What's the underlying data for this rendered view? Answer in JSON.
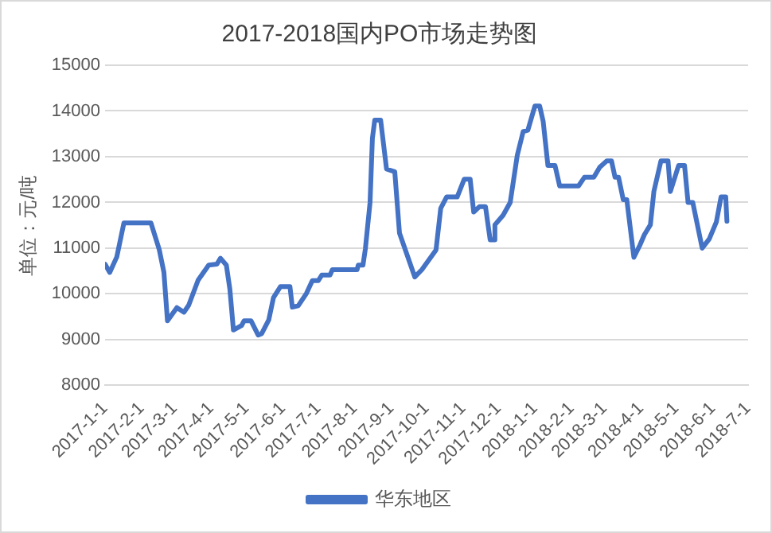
{
  "chart_data": {
    "type": "line",
    "title": "2017-2018国内PO市场走势图",
    "ylabel": "单位：元/吨",
    "x": [
      "2017-01-01",
      "2017-01-05",
      "2017-01-11",
      "2017-01-17",
      "2017-02-09",
      "2017-02-16",
      "2017-02-20",
      "2017-02-23",
      "2017-03-03",
      "2017-03-09",
      "2017-03-13",
      "2017-03-21",
      "2017-03-30",
      "2017-04-06",
      "2017-04-09",
      "2017-04-14",
      "2017-04-17",
      "2017-04-20",
      "2017-04-27",
      "2017-04-29",
      "2017-05-05",
      "2017-05-11",
      "2017-05-14",
      "2017-05-20",
      "2017-05-24",
      "2017-05-30",
      "2017-06-07",
      "2017-06-09",
      "2017-06-14",
      "2017-06-21",
      "2017-06-26",
      "2017-07-01",
      "2017-07-04",
      "2017-07-11",
      "2017-07-13",
      "2017-08-03",
      "2017-08-04",
      "2017-08-08",
      "2017-08-10",
      "2017-08-14",
      "2017-08-16",
      "2017-08-18",
      "2017-08-23",
      "2017-08-28",
      "2017-09-04",
      "2017-09-08",
      "2017-09-13",
      "2017-09-21",
      "2017-09-27",
      "2017-10-09",
      "2017-10-13",
      "2017-10-18",
      "2017-10-27",
      "2017-11-02",
      "2017-11-07",
      "2017-11-10",
      "2017-11-15",
      "2017-11-20",
      "2017-11-24",
      "2017-11-27",
      "2017-11-28",
      "2017-12-05",
      "2017-12-11",
      "2017-12-17",
      "2017-12-22",
      "2017-12-26",
      "2018-01-01",
      "2018-01-05",
      "2018-01-08",
      "2018-01-12",
      "2018-01-18",
      "2018-01-22",
      "2018-02-07",
      "2018-02-12",
      "2018-02-20",
      "2018-02-25",
      "2018-03-03",
      "2018-03-07",
      "2018-03-10",
      "2018-03-13",
      "2018-03-17",
      "2018-03-20",
      "2018-03-26",
      "2018-03-31",
      "2018-04-04",
      "2018-04-09",
      "2018-04-12",
      "2018-04-18",
      "2018-04-24",
      "2018-04-26",
      "2018-05-03",
      "2018-05-08",
      "2018-05-11",
      "2018-05-15",
      "2018-05-23",
      "2018-05-29",
      "2018-06-04",
      "2018-06-08",
      "2018-06-12",
      "2018-06-13"
    ],
    "series": [
      {
        "name": "华东地区",
        "color": "#4472c4",
        "values": [
          10650,
          10470,
          10810,
          11550,
          11550,
          10970,
          10470,
          9410,
          9700,
          9600,
          9750,
          10300,
          10630,
          10650,
          10780,
          10630,
          10100,
          9210,
          9310,
          9410,
          9410,
          9100,
          9130,
          9430,
          9920,
          10160,
          10160,
          9710,
          9740,
          10010,
          10290,
          10290,
          10410,
          10410,
          10530,
          10530,
          10630,
          10630,
          10980,
          12000,
          13400,
          13800,
          13800,
          12730,
          12670,
          11330,
          10960,
          10370,
          10530,
          10960,
          11870,
          12120,
          12120,
          12510,
          12510,
          11790,
          11910,
          11910,
          11180,
          11180,
          11510,
          11720,
          12000,
          13030,
          13550,
          13580,
          14110,
          14110,
          13770,
          12810,
          12810,
          12360,
          12360,
          12550,
          12550,
          12770,
          12910,
          12910,
          12550,
          12550,
          12060,
          12060,
          10800,
          11060,
          11300,
          11510,
          12240,
          12910,
          12910,
          12240,
          12810,
          12810,
          12000,
          12000,
          11000,
          11200,
          11570,
          12120,
          12120,
          11590
        ]
      }
    ],
    "xlim": [
      "2017-01-01",
      "2018-07-01"
    ],
    "xticks": [
      {
        "value": "2017-01-01",
        "label": "2017-1-1"
      },
      {
        "value": "2017-02-01",
        "label": "2017-2-1"
      },
      {
        "value": "2017-03-01",
        "label": "2017-3-1"
      },
      {
        "value": "2017-04-01",
        "label": "2017-4-1"
      },
      {
        "value": "2017-05-01",
        "label": "2017-5-1"
      },
      {
        "value": "2017-06-01",
        "label": "2017-6-1"
      },
      {
        "value": "2017-07-01",
        "label": "2017-7-1"
      },
      {
        "value": "2017-08-01",
        "label": "2017-8-1"
      },
      {
        "value": "2017-09-01",
        "label": "2017-9-1"
      },
      {
        "value": "2017-10-01",
        "label": "2017-10-1"
      },
      {
        "value": "2017-11-01",
        "label": "2017-11-1"
      },
      {
        "value": "2017-12-01",
        "label": "2017-12-1"
      },
      {
        "value": "2018-01-01",
        "label": "2018-1-1"
      },
      {
        "value": "2018-02-01",
        "label": "2018-2-1"
      },
      {
        "value": "2018-03-01",
        "label": "2018-3-1"
      },
      {
        "value": "2018-04-01",
        "label": "2018-4-1"
      },
      {
        "value": "2018-05-01",
        "label": "2018-5-1"
      },
      {
        "value": "2018-06-01",
        "label": "2018-6-1"
      },
      {
        "value": "2018-07-01",
        "label": "2018-7-1"
      }
    ],
    "ylim": [
      8000,
      15000
    ],
    "yticks": [
      8000,
      9000,
      10000,
      11000,
      12000,
      13000,
      14000,
      15000
    ],
    "grid": "y",
    "legend": "bottom",
    "marker": "none",
    "line_style": "solid"
  }
}
